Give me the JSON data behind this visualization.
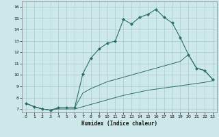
{
  "xlabel": "Humidex (Indice chaleur)",
  "bg_color": "#cce8ea",
  "grid_color": "#aacccc",
  "line_color": "#2a6e64",
  "xlim": [
    -0.5,
    23.5
  ],
  "ylim": [
    6.7,
    16.5
  ],
  "xticks": [
    0,
    1,
    2,
    3,
    4,
    5,
    6,
    7,
    8,
    9,
    10,
    11,
    12,
    13,
    14,
    15,
    16,
    17,
    18,
    19,
    20,
    21,
    22,
    23
  ],
  "yticks": [
    7,
    8,
    9,
    10,
    11,
    12,
    13,
    14,
    15,
    16
  ],
  "line1_x": [
    0,
    1,
    2,
    3,
    4,
    5,
    6,
    7,
    8,
    9,
    10,
    11,
    12,
    13,
    14,
    15,
    16,
    17,
    18,
    19,
    20,
    21,
    22,
    23
  ],
  "line1_y": [
    7.5,
    7.2,
    7.0,
    6.9,
    7.1,
    7.1,
    7.1,
    10.1,
    11.5,
    12.3,
    12.8,
    13.0,
    14.9,
    14.5,
    15.1,
    15.35,
    15.8,
    15.1,
    14.6,
    13.3,
    11.8,
    10.6,
    10.4,
    9.6
  ],
  "line2_x": [
    0,
    1,
    2,
    3,
    4,
    5,
    6,
    7,
    8,
    9,
    10,
    11,
    12,
    13,
    14,
    15,
    16,
    17,
    18,
    19,
    20,
    21,
    22,
    23
  ],
  "line2_y": [
    7.5,
    7.2,
    7.0,
    6.9,
    7.1,
    7.1,
    7.1,
    8.4,
    8.8,
    9.1,
    9.4,
    9.6,
    9.8,
    10.0,
    10.2,
    10.4,
    10.6,
    10.8,
    11.0,
    11.2,
    11.8,
    10.6,
    10.4,
    9.6
  ],
  "line3_x": [
    0,
    1,
    2,
    3,
    4,
    5,
    6,
    7,
    8,
    9,
    10,
    11,
    12,
    13,
    14,
    15,
    16,
    17,
    18,
    19,
    20,
    21,
    22,
    23
  ],
  "line3_y": [
    7.5,
    7.2,
    7.0,
    6.9,
    7.0,
    7.0,
    7.0,
    7.2,
    7.4,
    7.6,
    7.8,
    8.0,
    8.2,
    8.35,
    8.5,
    8.65,
    8.75,
    8.85,
    8.95,
    9.05,
    9.15,
    9.25,
    9.35,
    9.5
  ]
}
